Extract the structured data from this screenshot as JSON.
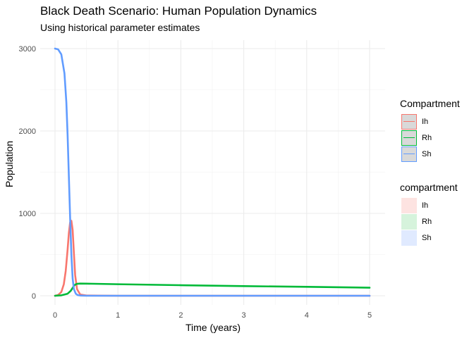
{
  "title": "Black Death Scenario: Human Population Dynamics",
  "subtitle": "Using historical parameter estimates",
  "colors": {
    "Ih": "#F8766D",
    "Rh": "#00BA38",
    "Sh": "#619CFF"
  },
  "legend_lines": {
    "title": "Compartment",
    "items": [
      "Ih",
      "Rh",
      "Sh"
    ]
  },
  "legend_fill": {
    "title": "compartment",
    "items": [
      "Ih",
      "Rh",
      "Sh"
    ]
  },
  "chart_data": {
    "type": "line",
    "title": "Black Death Scenario: Human Population Dynamics",
    "subtitle": "Using historical parameter estimates",
    "xlabel": "Time (years)",
    "ylabel": "Population",
    "xlim": [
      0,
      5
    ],
    "ylim": [
      0,
      3000
    ],
    "x_ticks": [
      0,
      1,
      2,
      3,
      4,
      5
    ],
    "y_ticks": [
      0,
      1000,
      2000,
      3000
    ],
    "grid": true,
    "legend_position": "right",
    "series": [
      {
        "name": "Sh",
        "x": [
          0,
          0.05,
          0.1,
          0.15,
          0.18,
          0.2,
          0.22,
          0.24,
          0.26,
          0.28,
          0.3,
          0.33,
          0.36,
          0.4,
          0.5,
          1,
          2,
          3,
          4,
          5
        ],
        "y": [
          3000,
          2990,
          2930,
          2700,
          2350,
          1950,
          1450,
          950,
          500,
          210,
          80,
          25,
          8,
          3,
          0,
          0,
          0,
          0,
          0,
          0
        ]
      },
      {
        "name": "Ih",
        "x": [
          0,
          0.05,
          0.1,
          0.14,
          0.17,
          0.2,
          0.22,
          0.24,
          0.26,
          0.28,
          0.3,
          0.32,
          0.35,
          0.4,
          0.5,
          1,
          2,
          3,
          4,
          5
        ],
        "y": [
          0,
          10,
          45,
          140,
          300,
          560,
          760,
          890,
          910,
          800,
          520,
          250,
          80,
          15,
          3,
          0,
          0,
          0,
          0,
          0
        ]
      },
      {
        "name": "Rh",
        "x": [
          0,
          0.1,
          0.2,
          0.25,
          0.28,
          0.3,
          0.32,
          0.35,
          0.4,
          0.5,
          1,
          2,
          3,
          4,
          5
        ],
        "y": [
          0,
          5,
          25,
          60,
          95,
          120,
          135,
          145,
          148,
          147,
          140,
          128,
          117,
          108,
          98
        ]
      }
    ]
  }
}
